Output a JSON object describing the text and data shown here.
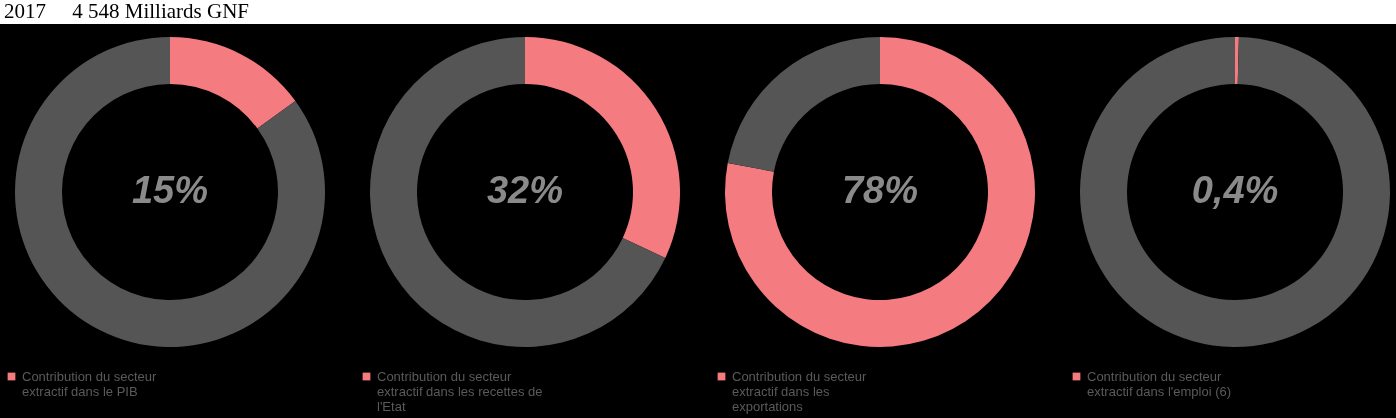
{
  "chart_data": [
    {
      "type": "donut",
      "annotations": [
        "2017     4 548 Milliards GNF"
      ],
      "categories": [
        "Contribution du secteur extractif dans le PIB",
        null
      ],
      "values": [
        15,
        85
      ],
      "colors": [
        "#f47b7f",
        "#555555"
      ],
      "value_labels": [
        "15%",
        null
      ],
      "legend": "bottom"
    },
    {
      "type": "donut",
      "categories": [
        "Contribution du secteur extractif dans les recettes de l'Etat",
        null
      ],
      "values": [
        32,
        68
      ],
      "colors": [
        "#f47b7f",
        "#555555"
      ],
      "value_labels": [
        "32%",
        null
      ],
      "legend": "bottom"
    },
    {
      "type": "donut",
      "categories": [
        "Contribution du secteur extractif dans les exportations",
        null
      ],
      "values": [
        78,
        22
      ],
      "colors": [
        "#f47b7f",
        "#555555"
      ],
      "value_labels": [
        "78%",
        null
      ],
      "legend": "bottom"
    },
    {
      "type": "donut",
      "categories": [
        "Contribution du secteur extractif dans l'emploi (6)",
        null
      ],
      "values": [
        0.4,
        99.6
      ],
      "colors": [
        "#f47b7f",
        "#555555"
      ],
      "value_labels": [
        "0,4%",
        null
      ],
      "legend": "bottom"
    }
  ]
}
